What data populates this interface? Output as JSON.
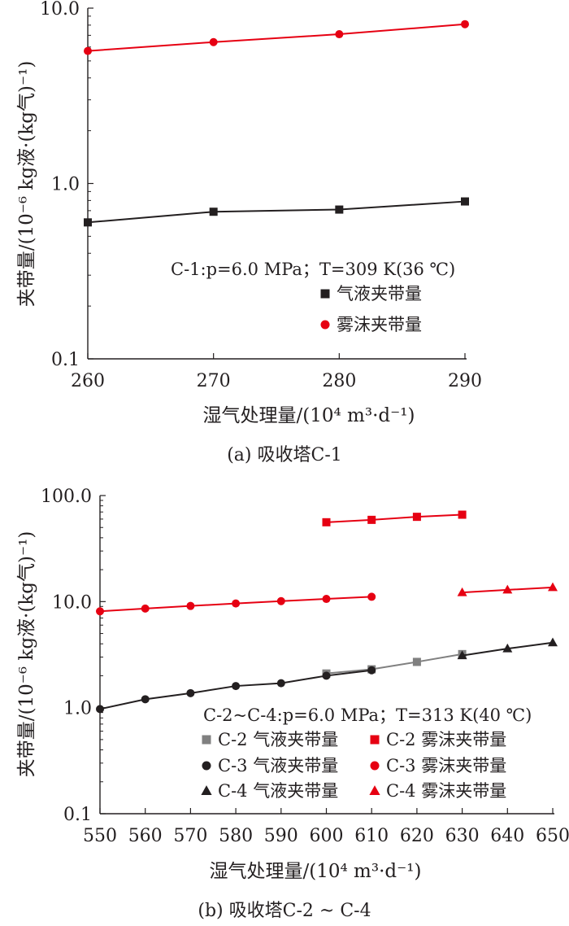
{
  "chart_data": [
    {
      "type": "line",
      "caption": "(a) 吸收塔C-1",
      "xlabel": "湿气处理量/(10⁴ m³·d⁻¹)",
      "ylabel": "夹带量/(10⁻⁶ kg液·(kg气)⁻¹)",
      "x_scale": "linear",
      "y_scale": "log",
      "xlim": [
        260,
        290
      ],
      "ylim": [
        0.1,
        10
      ],
      "x_ticks": [
        "260",
        "270",
        "280",
        "290"
      ],
      "y_ticks": [
        "0.1",
        "1.0",
        "10.0"
      ],
      "annotation": "C-1:p=6.0 MPa；T=309 K(36 ℃)",
      "legend_position": "center-right",
      "series": [
        {
          "name": "气液夹带量",
          "color": "#231f20",
          "marker": "square",
          "x": [
            260,
            270,
            280,
            290
          ],
          "y": [
            0.6,
            0.69,
            0.71,
            0.79
          ]
        },
        {
          "name": "雾沫夹带量",
          "color": "#e60012",
          "marker": "circle",
          "x": [
            260,
            270,
            280,
            290
          ],
          "y": [
            5.7,
            6.4,
            7.1,
            8.1
          ]
        }
      ]
    },
    {
      "type": "line",
      "caption": "(b) 吸收塔C-2 ~ C-4",
      "xlabel": "湿气处理量/(10⁴ m³·d⁻¹)",
      "ylabel": "夹带量/(10⁻⁶ kg液·(kg气)⁻¹)",
      "x_scale": "linear",
      "y_scale": "log",
      "xlim": [
        550,
        650
      ],
      "ylim": [
        0.1,
        100
      ],
      "x_ticks": [
        "550",
        "560",
        "570",
        "580",
        "590",
        "600",
        "610",
        "620",
        "630",
        "640",
        "650"
      ],
      "y_ticks": [
        "0.1",
        "1.0",
        "10.0",
        "100.0"
      ],
      "annotation": "C-2~C-4:p=6.0 MPa；T=313 K(40 ℃)",
      "legend_position": "bottom-right",
      "series": [
        {
          "name": "C-2 气液夹带量",
          "color": "#808080",
          "marker": "square",
          "x": [
            600,
            610,
            620,
            630
          ],
          "y": [
            2.1,
            2.3,
            2.7,
            3.2
          ]
        },
        {
          "name": "C-3 气液夹带量",
          "color": "#231f20",
          "marker": "circle",
          "x": [
            550,
            560,
            570,
            580,
            590,
            600,
            610
          ],
          "y": [
            0.97,
            1.2,
            1.37,
            1.6,
            1.7,
            2.0,
            2.25
          ]
        },
        {
          "name": "C-4 气液夹带量",
          "color": "#231f20",
          "marker": "triangle",
          "x": [
            630,
            640,
            650
          ],
          "y": [
            3.1,
            3.6,
            4.1
          ]
        },
        {
          "name": "C-2 雾沫夹带量",
          "color": "#e60012",
          "marker": "square",
          "x": [
            600,
            610,
            620,
            630
          ],
          "y": [
            56,
            59,
            63,
            66
          ]
        },
        {
          "name": "C-3 雾沫夹带量",
          "color": "#e60012",
          "marker": "circle",
          "x": [
            550,
            560,
            570,
            580,
            590,
            600,
            610
          ],
          "y": [
            8.1,
            8.6,
            9.1,
            9.6,
            10.1,
            10.6,
            11.1
          ]
        },
        {
          "name": "C-4 雾沫夹带量",
          "color": "#e60012",
          "marker": "triangle",
          "x": [
            630,
            640,
            650
          ],
          "y": [
            12.2,
            12.9,
            13.6
          ]
        }
      ]
    }
  ]
}
